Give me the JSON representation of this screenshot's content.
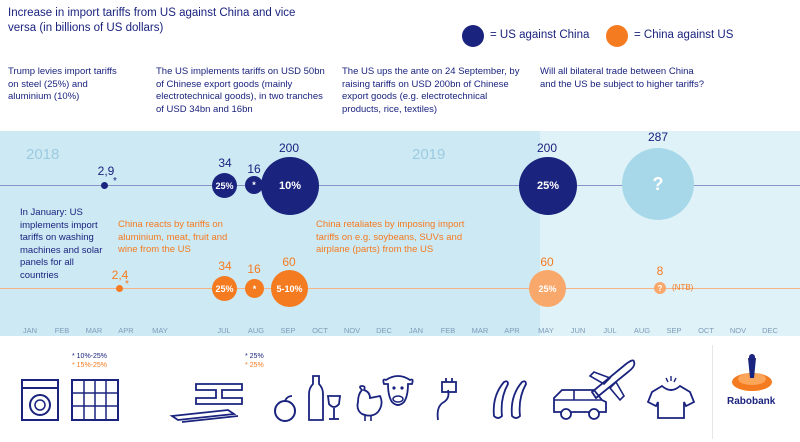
{
  "title": "Increase in import tariffs from US against China and vice versa (in billions of US dollars)",
  "legend": {
    "us": "= US against China",
    "china": "= China against US",
    "us_color": "#1a237e",
    "china_color": "#f47b20"
  },
  "notes": {
    "n1": "Trump levies import tariffs on steel (25%) and aluminium (10%)",
    "n2": "The US implements tariffs on USD 50bn of Chinese export goods (mainly electrotechnical goods), in two tranches of USD 34bn and 16bn",
    "n3": "The US ups the ante on 24 September, by raising tariffs on USD 200bn of Chinese export goods (e.g. electrotechnical products, rice, textiles)",
    "n4": "Will all bilateral trade between China and the US be subject to higher tariffs?",
    "n5": "In January: US implements import tariffs on washing machines and solar panels for all countries",
    "n6": "China reacts by tariffs on aluminium, meat, fruit and wine from the US",
    "n7": "China retaliates by imposing import tariffs on e.g. soybeans, SUVs and airplane (parts) from the US"
  },
  "years": {
    "y2018": "2018",
    "y2019": "2019"
  },
  "months": [
    "JAN",
    "FEB",
    "MAR",
    "APR",
    "MAY",
    "JUL",
    "AUG",
    "SEP",
    "OCT",
    "NOV",
    "DEC",
    "JAN",
    "FEB",
    "MAR",
    "APR",
    "MAY",
    "JUN",
    "JUL",
    "AUG",
    "SEP",
    "OCT",
    "NOV",
    "DEC"
  ],
  "us_points": {
    "mar": "2,9",
    "mar_star": "*",
    "jul": "34",
    "jul_pct": "25%",
    "aug": "16",
    "aug_pct": "*",
    "sep": "200",
    "sep_pct": "10%",
    "may": "200",
    "may_pct": "25%",
    "sep19": "287",
    "sep19_pct": "?"
  },
  "china_points": {
    "apr": "2,4",
    "apr_star": "*",
    "jul": "34",
    "jul_pct": "25%",
    "aug": "16",
    "aug_pct": "*",
    "sep": "60",
    "sep_pct": "5-10%",
    "may": "60",
    "may_pct": "25%",
    "aug19": "8",
    "aug19_pct": "?",
    "aug19_note": "(NTB)"
  },
  "footnotes": {
    "f1_us": "* 10%-25%",
    "f1_cn": "* 15%-25%",
    "f2_us": "* 25%",
    "f2_cn": "* 25%"
  },
  "brand": "Rabobank"
}
